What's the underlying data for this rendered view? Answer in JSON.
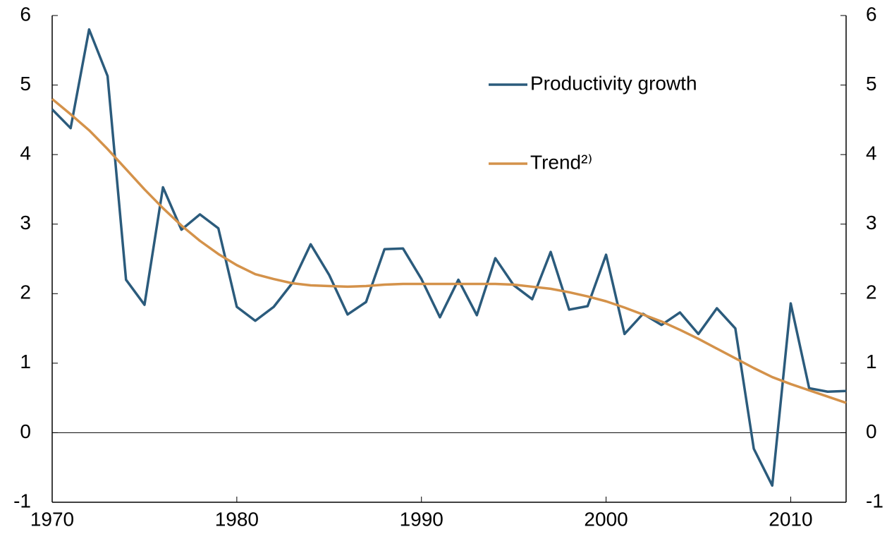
{
  "chart_data": {
    "type": "line",
    "x": [
      1970,
      1971,
      1972,
      1973,
      1974,
      1975,
      1976,
      1977,
      1978,
      1979,
      1980,
      1981,
      1982,
      1983,
      1984,
      1985,
      1986,
      1987,
      1988,
      1989,
      1990,
      1991,
      1992,
      1993,
      1994,
      1995,
      1996,
      1997,
      1998,
      1999,
      2000,
      2001,
      2002,
      2003,
      2004,
      2005,
      2006,
      2007,
      2008,
      2009,
      2010,
      2011,
      2012,
      2013
    ],
    "series": [
      {
        "name": "Productivity growth",
        "color": "#2b5b7c",
        "values": [
          4.65,
          4.38,
          5.8,
          5.13,
          2.2,
          1.84,
          3.53,
          2.92,
          3.14,
          2.94,
          1.81,
          1.61,
          1.81,
          2.15,
          2.71,
          2.27,
          1.7,
          1.88,
          2.64,
          2.65,
          2.21,
          1.66,
          2.2,
          1.69,
          2.51,
          2.12,
          1.92,
          2.6,
          1.77,
          1.82,
          2.56,
          1.42,
          1.71,
          1.55,
          1.73,
          1.42,
          1.79,
          1.5,
          -0.23,
          -0.76,
          1.86,
          0.64,
          0.59,
          0.6
        ]
      },
      {
        "name": "Trend²⁾",
        "color": "#d4924a",
        "values": [
          4.8,
          4.58,
          4.35,
          4.08,
          3.79,
          3.5,
          3.23,
          2.98,
          2.76,
          2.57,
          2.41,
          2.28,
          2.21,
          2.15,
          2.12,
          2.11,
          2.1,
          2.11,
          2.13,
          2.14,
          2.14,
          2.14,
          2.14,
          2.14,
          2.14,
          2.13,
          2.1,
          2.07,
          2.02,
          1.96,
          1.89,
          1.8,
          1.7,
          1.6,
          1.48,
          1.35,
          1.21,
          1.07,
          0.93,
          0.8,
          0.7,
          0.61,
          0.52,
          0.43
        ]
      }
    ],
    "xlim": [
      1970,
      2013
    ],
    "xticks": [
      1970,
      1980,
      1990,
      2000,
      2010
    ],
    "ylim": [
      -1,
      6
    ],
    "yticks": [
      -1,
      0,
      1,
      2,
      3,
      4,
      5,
      6
    ],
    "y2lim": [
      -1,
      6
    ],
    "y2ticks": [
      -1,
      0,
      1,
      2,
      3,
      4,
      5,
      6
    ]
  }
}
